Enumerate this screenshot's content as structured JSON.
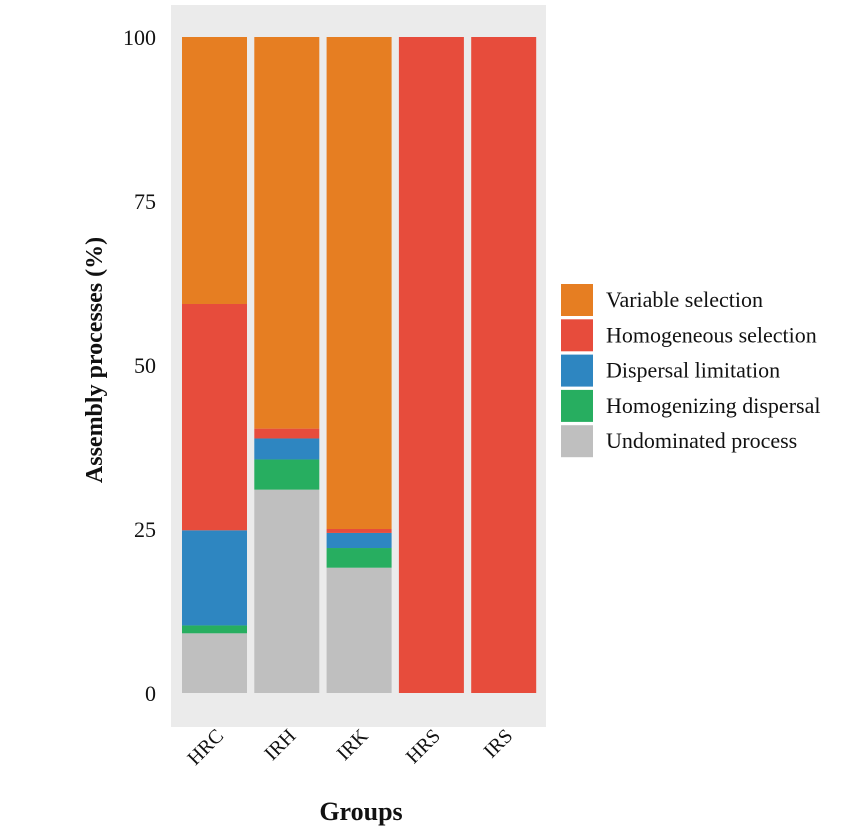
{
  "chart_data": {
    "type": "bar",
    "stacked": true,
    "title": "",
    "xlabel": "Groups",
    "ylabel": "Assembly processes (%)",
    "ylim": [
      0,
      100
    ],
    "yticks": [
      "0",
      "25",
      "50",
      "75",
      "100"
    ],
    "categories": [
      "HRC",
      "IRH",
      "IRK",
      "HRS",
      "IRS"
    ],
    "series": [
      {
        "name": "Undominated process",
        "color": "#BFBFBF",
        "values": [
          9.1,
          31.0,
          19.1,
          0,
          0
        ]
      },
      {
        "name": "Homogenizing dispersal",
        "color": "#27AE60",
        "values": [
          1.2,
          4.6,
          3.0,
          0,
          0
        ]
      },
      {
        "name": "Dispersal limitation",
        "color": "#2E86C1",
        "values": [
          14.5,
          3.2,
          2.3,
          0,
          0
        ]
      },
      {
        "name": "Homogeneous selection",
        "color": "#E74C3C",
        "values": [
          34.5,
          1.5,
          0.6,
          100,
          100
        ]
      },
      {
        "name": "Variable selection",
        "color": "#E67E22",
        "values": [
          40.7,
          59.7,
          75.0,
          0,
          0
        ]
      }
    ],
    "legend_order": [
      "Variable selection",
      "Homogeneous selection",
      "Dispersal limitation",
      "Homogenizing dispersal",
      "Undominated process"
    ],
    "legend_position": "right",
    "grid": false,
    "panel_background": "#EBEBEB"
  }
}
